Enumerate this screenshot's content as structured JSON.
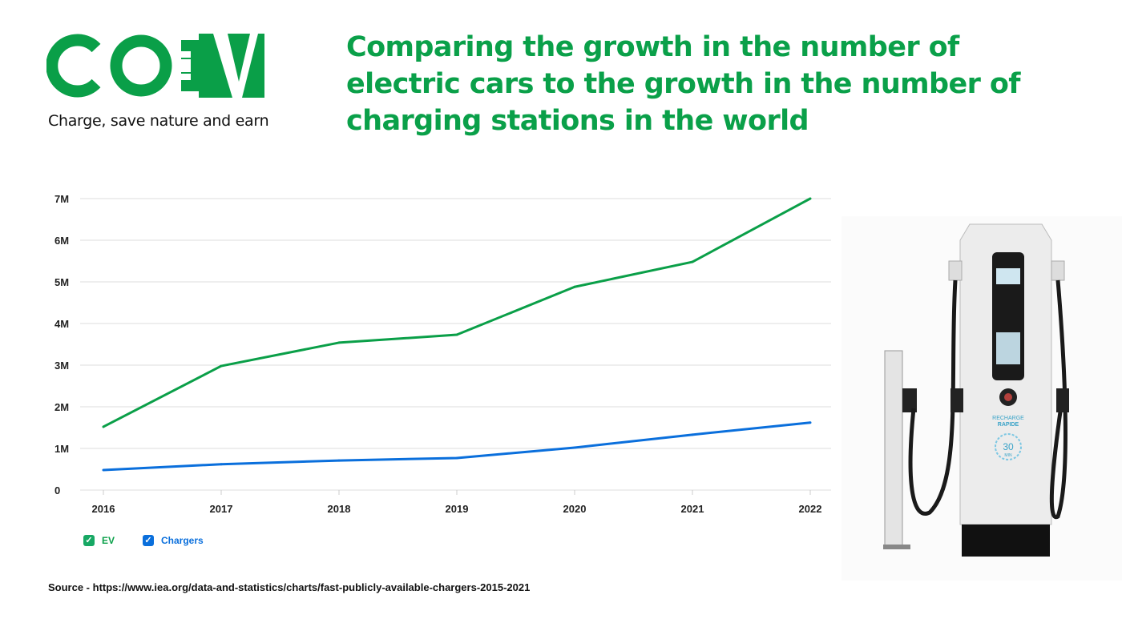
{
  "brand": {
    "logo_text": "COEV",
    "tagline": "Charge, save nature and earn",
    "color": "#0a9f48"
  },
  "title": "Comparing the growth in the number of electric cars to the growth in the number of charging stations in the world",
  "source": "Source - https://www.iea.org/data-and-statistics/charts/fast-publicly-available-chargers-2015-2021",
  "charger_labels": {
    "brand": "RECHARGE",
    "sub": "RAPIDE",
    "time": "30",
    "unit": "MIN"
  },
  "chart_data": {
    "type": "line",
    "title": "",
    "xlabel": "",
    "ylabel": "",
    "categories": [
      "2016",
      "2017",
      "2018",
      "2019",
      "2020",
      "2021",
      "2022"
    ],
    "ylim": [
      0,
      7000000
    ],
    "yticks": [
      0,
      1000000,
      2000000,
      3000000,
      4000000,
      5000000,
      6000000,
      7000000
    ],
    "ytick_labels": [
      "0",
      "1M",
      "2M",
      "3M",
      "4M",
      "5M",
      "6M",
      "7M"
    ],
    "grid": true,
    "legend_position": "bottom-left",
    "series": [
      {
        "name": "EV",
        "color": "#0a9f48",
        "values": [
          1520000,
          2980000,
          3540000,
          3730000,
          4880000,
          5480000,
          7000000
        ]
      },
      {
        "name": "Chargers",
        "color": "#0a6fdc",
        "values": [
          480000,
          620000,
          710000,
          770000,
          1020000,
          1330000,
          1620000
        ]
      }
    ]
  }
}
